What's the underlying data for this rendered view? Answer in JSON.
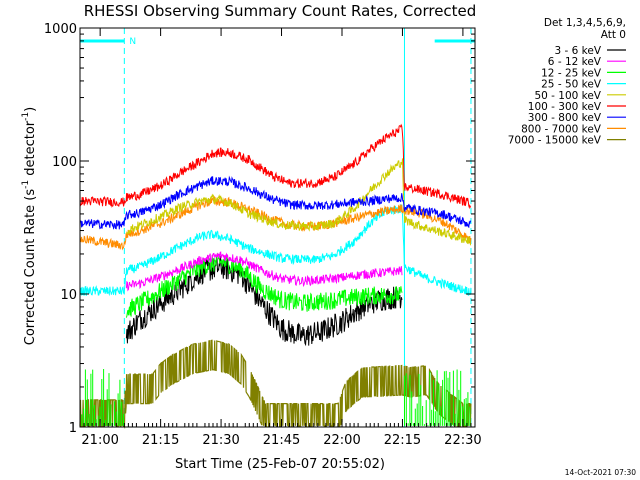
{
  "chart_data": {
    "type": "line",
    "title": "RHESSI Observing Summary Count Rates, Corrected",
    "xlabel": "Start Time (25-Feb-07 20:55:02)",
    "ylabel_main": "Corrected Count Rate (s",
    "ylabel_sup1": "-1",
    "ylabel_mid": " detector",
    "ylabel_sup2": "-1",
    "ylabel_end": ")",
    "x_start": "20:55",
    "xlim_minutes": [
      0,
      98
    ],
    "x_ticks": [
      {
        "label": "21:00",
        "min": 5
      },
      {
        "label": "21:15",
        "min": 20
      },
      {
        "label": "21:30",
        "min": 35
      },
      {
        "label": "21:45",
        "min": 50
      },
      {
        "label": "22:00",
        "min": 65
      },
      {
        "label": "22:15",
        "min": 80
      },
      {
        "label": "22:30",
        "min": 95
      }
    ],
    "y_scale": "log",
    "ylim": [
      1,
      1000
    ],
    "y_ticks": [
      {
        "label": "1",
        "value": 1
      },
      {
        "label": "10",
        "value": 10
      },
      {
        "label": "100",
        "value": 100
      },
      {
        "label": "1000",
        "value": 1000
      }
    ],
    "legend_header": [
      "Det 1,3,4,5,6,9,",
      "Att 0"
    ],
    "legend_position": "right-outside",
    "flags": {
      "night_intervals_min": [
        [
          0,
          11
        ],
        [
          88,
          98
        ]
      ],
      "night_marker": "N",
      "saa_lines_min": [
        11,
        97
      ],
      "data_gap_line_min": 80.5,
      "color": "#00FFFF"
    },
    "series": [
      {
        "name": "3 - 6 keV",
        "color": "#000000",
        "noise": 0.09,
        "points": [
          [
            11.5,
            5.0
          ],
          [
            15,
            6.5
          ],
          [
            20,
            8.5
          ],
          [
            25,
            11
          ],
          [
            30,
            14.5
          ],
          [
            35,
            16
          ],
          [
            40,
            14
          ],
          [
            45,
            8.5
          ],
          [
            50,
            5.5
          ],
          [
            55,
            4.8
          ],
          [
            60,
            5.2
          ],
          [
            65,
            6.2
          ],
          [
            70,
            8
          ],
          [
            75,
            9.2
          ],
          [
            80,
            9.6
          ]
        ]
      },
      {
        "name": "6 - 12 keV",
        "color": "#FF00FF",
        "points": [
          [
            11.5,
            11.5
          ],
          [
            15,
            12
          ],
          [
            20,
            13.5
          ],
          [
            25,
            15.5
          ],
          [
            30,
            18
          ],
          [
            35,
            19.5
          ],
          [
            40,
            18
          ],
          [
            45,
            15
          ],
          [
            50,
            13
          ],
          [
            55,
            12.5
          ],
          [
            60,
            12.8
          ],
          [
            65,
            13.3
          ],
          [
            70,
            14
          ],
          [
            75,
            14.5
          ],
          [
            80,
            15
          ]
        ]
      },
      {
        "name": "12 - 25 keV",
        "color": "#00FF00",
        "noise": 0.07,
        "points": [
          [
            11.5,
            7.5
          ],
          [
            15,
            8.5
          ],
          [
            20,
            10.5
          ],
          [
            25,
            13
          ],
          [
            30,
            16
          ],
          [
            35,
            17.5
          ],
          [
            40,
            15.5
          ],
          [
            45,
            11
          ],
          [
            50,
            9
          ],
          [
            55,
            8.5
          ],
          [
            60,
            8.8
          ],
          [
            65,
            9.2
          ],
          [
            70,
            9.6
          ],
          [
            75,
            9.8
          ],
          [
            80,
            9.8
          ]
        ]
      },
      {
        "name": "25 - 50 keV",
        "color": "#00FFFF",
        "points": [
          [
            0,
            10.5
          ],
          [
            11,
            10.5
          ],
          [
            11.5,
            15
          ],
          [
            15,
            16
          ],
          [
            20,
            19
          ],
          [
            25,
            23
          ],
          [
            30,
            27
          ],
          [
            33,
            28
          ],
          [
            37,
            26
          ],
          [
            42,
            22
          ],
          [
            50,
            18.5
          ],
          [
            58,
            18
          ],
          [
            63,
            19.5
          ],
          [
            68,
            25
          ],
          [
            72,
            34
          ],
          [
            76,
            42
          ],
          [
            80,
            44
          ],
          [
            80.5,
            16
          ],
          [
            85,
            13.5
          ],
          [
            90,
            12
          ],
          [
            95,
            10.8
          ],
          [
            97,
            10.5
          ]
        ]
      },
      {
        "name": "50 - 100 keV",
        "color": "#CCCC00",
        "points": [
          [
            11.5,
            30
          ],
          [
            15,
            33
          ],
          [
            20,
            38
          ],
          [
            25,
            45
          ],
          [
            30,
            50
          ],
          [
            33,
            52
          ],
          [
            37,
            49
          ],
          [
            42,
            40
          ],
          [
            50,
            33
          ],
          [
            58,
            32
          ],
          [
            63,
            34
          ],
          [
            68,
            44
          ],
          [
            72,
            60
          ],
          [
            76,
            80
          ],
          [
            80,
            100
          ],
          [
            80.5,
            36
          ],
          [
            85,
            32
          ],
          [
            90,
            29
          ],
          [
            95,
            26
          ],
          [
            97,
            25
          ]
        ]
      },
      {
        "name": "100 - 300 keV",
        "color": "#FF0000",
        "points": [
          [
            0,
            50
          ],
          [
            11,
            49
          ],
          [
            11.5,
            53
          ],
          [
            15,
            56
          ],
          [
            20,
            65
          ],
          [
            25,
            82
          ],
          [
            30,
            100
          ],
          [
            33,
            115
          ],
          [
            37,
            116
          ],
          [
            42,
            102
          ],
          [
            48,
            76
          ],
          [
            52,
            68
          ],
          [
            58,
            68
          ],
          [
            63,
            75
          ],
          [
            68,
            95
          ],
          [
            72,
            122
          ],
          [
            76,
            150
          ],
          [
            80,
            175
          ],
          [
            80.5,
            64
          ],
          [
            85,
            60
          ],
          [
            90,
            56
          ],
          [
            95,
            50
          ],
          [
            97,
            48
          ]
        ]
      },
      {
        "name": "300 - 800 keV",
        "color": "#0000FF",
        "points": [
          [
            0,
            34
          ],
          [
            11,
            33
          ],
          [
            11.5,
            39
          ],
          [
            15,
            41
          ],
          [
            20,
            47
          ],
          [
            25,
            57
          ],
          [
            30,
            66
          ],
          [
            33,
            71
          ],
          [
            37,
            70
          ],
          [
            42,
            62
          ],
          [
            48,
            51
          ],
          [
            52,
            47
          ],
          [
            58,
            46
          ],
          [
            63,
            47
          ],
          [
            68,
            49
          ],
          [
            72,
            50
          ],
          [
            76,
            52
          ],
          [
            80,
            53
          ],
          [
            80.5,
            45
          ],
          [
            85,
            42
          ],
          [
            90,
            40
          ],
          [
            95,
            35
          ],
          [
            97,
            33
          ]
        ]
      },
      {
        "name": "800 - 7000 keV",
        "color": "#FF8C00",
        "points": [
          [
            0,
            26
          ],
          [
            11,
            23
          ],
          [
            11.5,
            28
          ],
          [
            15,
            30
          ],
          [
            20,
            34
          ],
          [
            25,
            40
          ],
          [
            30,
            47
          ],
          [
            33,
            50
          ],
          [
            37,
            49
          ],
          [
            42,
            43
          ],
          [
            48,
            36
          ],
          [
            52,
            33
          ],
          [
            58,
            32
          ],
          [
            63,
            34
          ],
          [
            68,
            37
          ],
          [
            72,
            40
          ],
          [
            76,
            42
          ],
          [
            80,
            44
          ],
          [
            80.5,
            43
          ],
          [
            85,
            40
          ],
          [
            90,
            35
          ],
          [
            95,
            28
          ],
          [
            97,
            25
          ]
        ]
      },
      {
        "name": "7000 - 15000 keV",
        "color": "#808000",
        "points": [
          [
            0,
            1.6
          ],
          [
            11,
            1.6
          ],
          [
            11.5,
            2.5
          ],
          [
            18,
            2.5
          ],
          [
            20,
            3.0
          ],
          [
            23,
            3.5
          ],
          [
            28,
            4.2
          ],
          [
            33,
            4.5
          ],
          [
            37,
            4.2
          ],
          [
            40,
            3.5
          ],
          [
            42,
            2.8
          ],
          [
            46,
            1.5
          ],
          [
            64,
            1.5
          ],
          [
            66,
            2.2
          ],
          [
            70,
            2.8
          ],
          [
            80,
            2.9
          ],
          [
            82,
            2.8
          ],
          [
            86,
            2.9
          ],
          [
            89,
            2.1
          ],
          [
            95,
            1.5
          ],
          [
            97,
            1.5
          ]
        ]
      }
    ],
    "overlays": [
      {
        "name": "",
        "color": "#00FF00",
        "values_at_min": [
          [
            0,
            2.8
          ],
          [
            11,
            2.8
          ],
          [
            80.5,
            2.6
          ],
          [
            97,
            2.6
          ]
        ],
        "style": "spikes"
      }
    ]
  },
  "footer": {
    "timestamp": "14-Oct-2021 07:30"
  }
}
